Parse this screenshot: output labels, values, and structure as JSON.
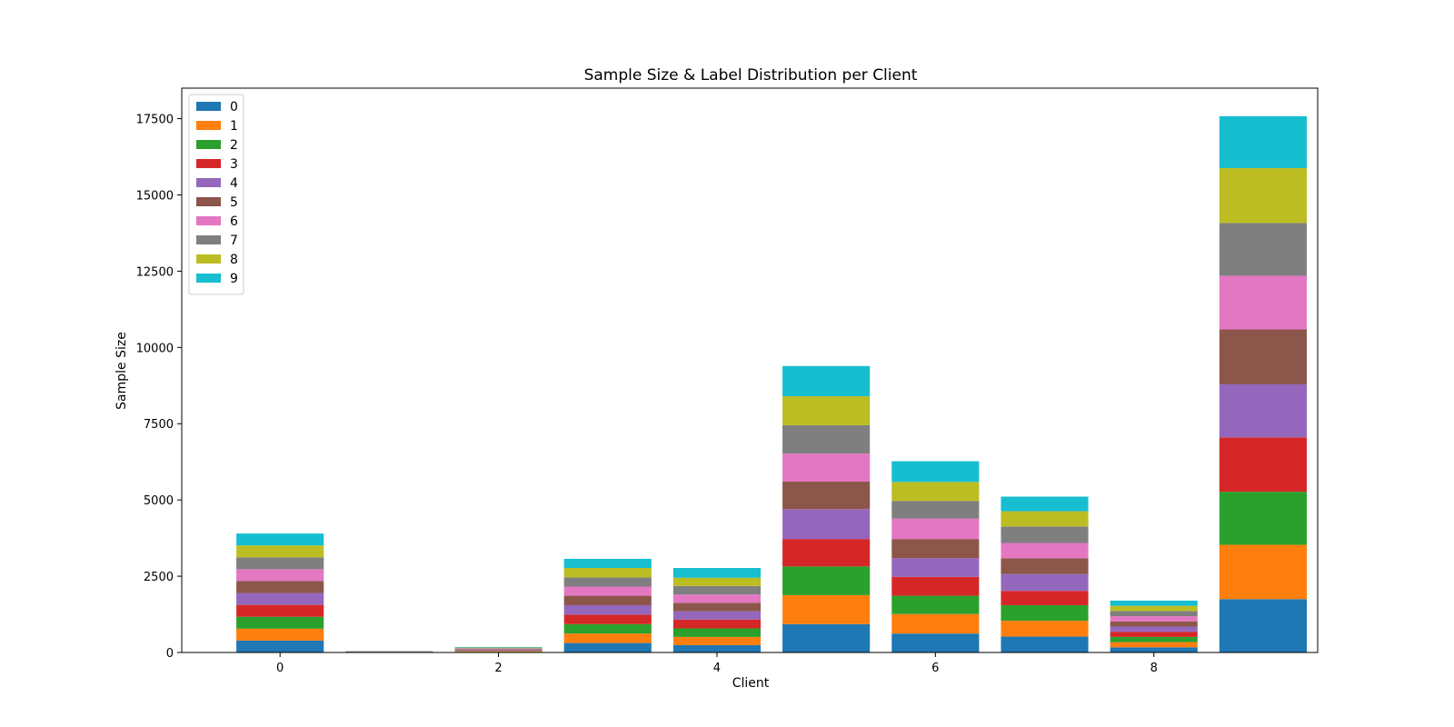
{
  "chart_data": {
    "type": "bar",
    "stacked": true,
    "title": "Sample Size & Label Distribution per Client",
    "xlabel": "Client",
    "ylabel": "Sample Size",
    "categories": [
      0,
      1,
      2,
      3,
      4,
      5,
      6,
      7,
      8,
      9
    ],
    "x_ticks": [
      "0",
      "2",
      "4",
      "6",
      "8"
    ],
    "y_ticks": [
      "0",
      "2500",
      "5000",
      "7500",
      "10000",
      "12500",
      "15000",
      "17500"
    ],
    "ylim": [
      0,
      18500
    ],
    "xlim": [
      -0.9,
      9.5
    ],
    "grid": false,
    "legend_position": "upper-left",
    "series": [
      {
        "name": "0",
        "color": "#1f77b4",
        "values": [
          390,
          5,
          18,
          310,
          240,
          930,
          620,
          520,
          170,
          1750
        ]
      },
      {
        "name": "1",
        "color": "#ff7f0e",
        "values": [
          390,
          5,
          18,
          310,
          270,
          950,
          640,
          520,
          170,
          1780
        ]
      },
      {
        "name": "2",
        "color": "#2ca02c",
        "values": [
          390,
          5,
          18,
          310,
          280,
          940,
          600,
          510,
          170,
          1740
        ]
      },
      {
        "name": "3",
        "color": "#d62728",
        "values": [
          390,
          5,
          18,
          310,
          290,
          900,
          620,
          470,
          170,
          1780
        ]
      },
      {
        "name": "4",
        "color": "#9467bd",
        "values": [
          390,
          5,
          18,
          310,
          270,
          980,
          610,
          550,
          170,
          1740
        ]
      },
      {
        "name": "5",
        "color": "#8c564b",
        "values": [
          390,
          5,
          18,
          310,
          280,
          900,
          630,
          520,
          170,
          1800
        ]
      },
      {
        "name": "6",
        "color": "#e377c2",
        "values": [
          390,
          5,
          18,
          300,
          270,
          920,
          670,
          500,
          170,
          1760
        ]
      },
      {
        "name": "7",
        "color": "#7f7f7f",
        "values": [
          390,
          5,
          18,
          300,
          280,
          930,
          580,
          540,
          170,
          1730
        ]
      },
      {
        "name": "8",
        "color": "#bcbd22",
        "values": [
          390,
          5,
          18,
          310,
          270,
          950,
          620,
          500,
          170,
          1800
        ]
      },
      {
        "name": "9",
        "color": "#17becf",
        "values": [
          390,
          5,
          18,
          300,
          320,
          990,
          680,
          480,
          170,
          1700
        ]
      }
    ]
  }
}
